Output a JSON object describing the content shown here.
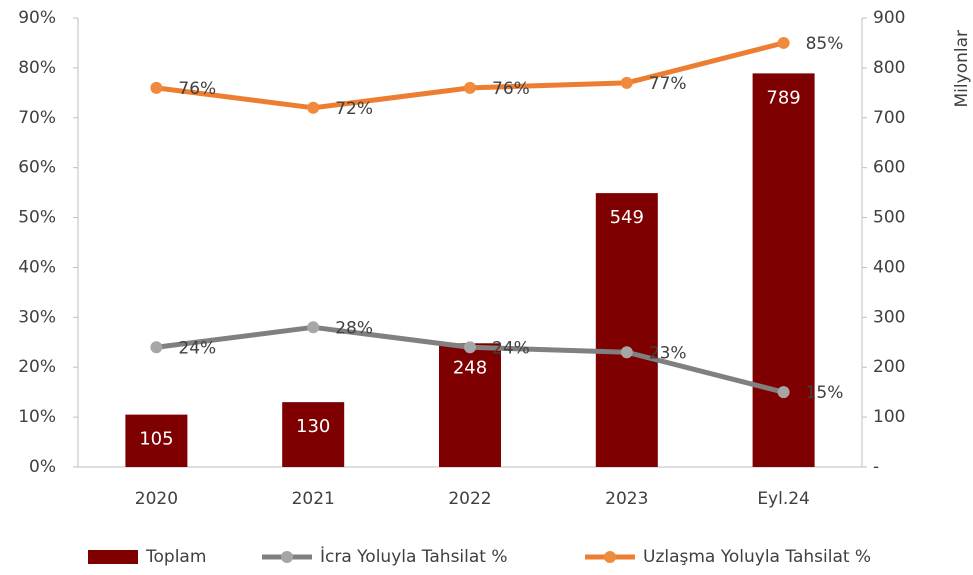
{
  "chart_data": {
    "type": "bar",
    "y2_label": "Milyonlar",
    "categories": [
      "2020",
      "2021",
      "2022",
      "2023",
      "Eyl.24"
    ],
    "series": [
      {
        "name": "Toplam",
        "type": "bar",
        "axis": "y2",
        "color": "#7f0000",
        "values": [
          105,
          130,
          248,
          549,
          789
        ]
      },
      {
        "name": "İcra Yoluyla Tahsilat %",
        "type": "line",
        "color": "#808080",
        "marker_color": "#a6a6a6",
        "values": [
          24,
          28,
          24,
          23,
          15
        ],
        "value_labels": [
          "24%",
          "28%",
          "24%",
          "23%",
          "15%"
        ]
      },
      {
        "name": "Uzlaşma Yoluyla Tahsilat %",
        "type": "line",
        "color": "#ed7d31",
        "marker_color": "#f08a3c",
        "values": [
          76,
          72,
          76,
          77,
          85
        ],
        "value_labels": [
          "76%",
          "72%",
          "76%",
          "77%",
          "85%"
        ]
      }
    ],
    "ylim": [
      0,
      90
    ],
    "yticks": [
      {
        "value": 0,
        "label": "0%"
      },
      {
        "value": 10,
        "label": "10%"
      },
      {
        "value": 20,
        "label": "20%"
      },
      {
        "value": 30,
        "label": "30%"
      },
      {
        "value": 40,
        "label": "40%"
      },
      {
        "value": 50,
        "label": "50%"
      },
      {
        "value": 60,
        "label": "60%"
      },
      {
        "value": 70,
        "label": "70%"
      },
      {
        "value": 80,
        "label": "80%"
      },
      {
        "value": 90,
        "label": "90%"
      }
    ],
    "y2lim": [
      0,
      900
    ],
    "y2ticks": [
      {
        "value": 0,
        "label": "-"
      },
      100,
      200,
      300,
      400,
      500,
      600,
      700,
      800,
      900
    ],
    "legend": "bottom"
  }
}
